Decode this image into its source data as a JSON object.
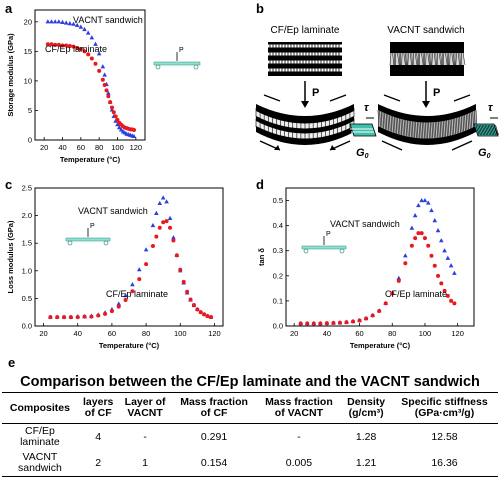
{
  "panels": {
    "a": {
      "letter": "a",
      "chart_data": {
        "type": "scatter",
        "xlabel": "Temperature (°C)",
        "ylabel": "Storage modulus (GPa)",
        "xlim": [
          10,
          130
        ],
        "ylim": [
          0,
          22
        ],
        "xticks": [
          20,
          40,
          60,
          80,
          100,
          120
        ],
        "yticks": [
          0,
          5,
          10,
          15,
          20
        ],
        "series": [
          {
            "name": "VACNT sandwich",
            "color": "#2b3fe0",
            "marker": "triangle",
            "x": [
              24,
              28,
              32,
              36,
              40,
              44,
              48,
              52,
              56,
              60,
              64,
              68,
              72,
              76,
              80,
              84,
              86,
              88,
              90,
              92,
              94,
              96,
              98,
              100,
              102,
              104,
              106,
              108,
              110,
              112,
              114,
              116,
              118
            ],
            "y": [
              20,
              20,
              20,
              20,
              19.9,
              19.8,
              19.7,
              19.6,
              19.4,
              19.1,
              18.7,
              18.1,
              17.3,
              16.2,
              14.6,
              12.4,
              11,
              9.4,
              7.9,
              6.4,
              5.1,
              4,
              3.2,
              2.6,
              2.1,
              1.7,
              1.4,
              1.2,
              1,
              0.9,
              0.8,
              0.7,
              0.6
            ]
          },
          {
            "name": "CF/Ep laminate",
            "color": "#e8191f",
            "marker": "circle",
            "x": [
              24,
              28,
              32,
              36,
              40,
              44,
              48,
              52,
              56,
              60,
              64,
              68,
              72,
              76,
              80,
              84,
              86,
              88,
              90,
              92,
              94,
              96,
              98,
              100,
              102,
              104,
              106,
              108,
              110,
              112,
              114,
              116,
              118
            ],
            "y": [
              16.2,
              16.2,
              16.1,
              16.1,
              16,
              16,
              15.9,
              15.8,
              15.6,
              15.4,
              15,
              14.5,
              13.8,
              12.9,
              11.7,
              10.2,
              9.3,
              8.4,
              7.4,
              6.4,
              5.5,
              4.7,
              4,
              3.4,
              2.9,
              2.6,
              2.3,
              2.1,
              2,
              1.9,
              1.8,
              1.8,
              1.7
            ]
          }
        ],
        "annotations": {
          "load": "P"
        }
      }
    },
    "b": {
      "letter": "b",
      "left_title": "CF/Ep laminate",
      "right_title": "VACNT sandwich",
      "load": "P",
      "tau": "τ",
      "g_label": "G",
      "g_sub": "0"
    },
    "c": {
      "letter": "c",
      "chart_data": {
        "type": "scatter",
        "xlabel": "Temperature (°C)",
        "ylabel": "Loss modulus (GPa)",
        "xlim": [
          15,
          125
        ],
        "ylim": [
          0,
          2.5
        ],
        "xticks": [
          20,
          40,
          60,
          80,
          100,
          120
        ],
        "yticks": [
          0.0,
          0.5,
          1.0,
          1.5,
          2.0,
          2.5
        ],
        "series": [
          {
            "name": "VACNT sandwich",
            "color": "#2b3fe0",
            "marker": "triangle",
            "x": [
              24,
              28,
              32,
              36,
              40,
              44,
              48,
              52,
              56,
              60,
              64,
              68,
              72,
              76,
              80,
              84,
              86,
              88,
              90,
              92,
              94,
              96,
              98,
              100,
              102,
              104,
              106,
              108,
              110,
              112,
              114,
              116,
              118
            ],
            "y": [
              0.16,
              0.16,
              0.16,
              0.16,
              0.17,
              0.17,
              0.18,
              0.2,
              0.24,
              0.3,
              0.4,
              0.55,
              0.75,
              1.02,
              1.38,
              1.82,
              2.04,
              2.22,
              2.32,
              2.25,
              1.95,
              1.6,
              1.28,
              1.0,
              0.78,
              0.6,
              0.47,
              0.37,
              0.3,
              0.25,
              0.21,
              0.18,
              0.16
            ]
          },
          {
            "name": "CF/Ep laminate",
            "color": "#e8191f",
            "marker": "circle",
            "x": [
              24,
              28,
              32,
              36,
              40,
              44,
              48,
              52,
              56,
              60,
              64,
              68,
              72,
              76,
              80,
              84,
              86,
              88,
              90,
              92,
              94,
              96,
              98,
              100,
              102,
              104,
              106,
              108,
              110,
              112,
              114,
              116,
              118
            ],
            "y": [
              0.16,
              0.16,
              0.16,
              0.16,
              0.16,
              0.17,
              0.17,
              0.19,
              0.22,
              0.27,
              0.35,
              0.47,
              0.63,
              0.85,
              1.12,
              1.45,
              1.62,
              1.78,
              1.88,
              1.9,
              1.78,
              1.55,
              1.28,
              1.02,
              0.8,
              0.62,
              0.48,
              0.38,
              0.3,
              0.25,
              0.21,
              0.18,
              0.16
            ]
          }
        ],
        "annotations": {
          "load": "P"
        }
      }
    },
    "d": {
      "letter": "d",
      "chart_data": {
        "type": "scatter",
        "xlabel": "Temperature (°C)",
        "ylabel": "tan δ",
        "xlim": [
          15,
          130
        ],
        "ylim": [
          0,
          0.55
        ],
        "xticks": [
          20,
          40,
          60,
          80,
          100,
          120
        ],
        "yticks": [
          0.0,
          0.1,
          0.2,
          0.3,
          0.4,
          0.5
        ],
        "series": [
          {
            "name": "VACNT sandwich",
            "color": "#2b3fe0",
            "marker": "triangle",
            "x": [
              24,
              28,
              32,
              36,
              40,
              44,
              48,
              52,
              56,
              60,
              64,
              68,
              72,
              76,
              80,
              84,
              88,
              92,
              94,
              96,
              98,
              100,
              102,
              104,
              106,
              108,
              110,
              112,
              114,
              116,
              118
            ],
            "y": [
              0.01,
              0.01,
              0.01,
              0.01,
              0.011,
              0.012,
              0.013,
              0.015,
              0.018,
              0.022,
              0.03,
              0.042,
              0.06,
              0.09,
              0.13,
              0.19,
              0.28,
              0.39,
              0.44,
              0.48,
              0.5,
              0.5,
              0.49,
              0.46,
              0.42,
              0.38,
              0.34,
              0.3,
              0.27,
              0.24,
              0.21
            ]
          },
          {
            "name": "CF/Ep laminate",
            "color": "#e8191f",
            "marker": "circle",
            "x": [
              24,
              28,
              32,
              36,
              40,
              44,
              48,
              52,
              56,
              60,
              64,
              68,
              72,
              76,
              80,
              84,
              88,
              92,
              94,
              96,
              98,
              100,
              102,
              104,
              106,
              108,
              110,
              112,
              114,
              116,
              118
            ],
            "y": [
              0.01,
              0.01,
              0.01,
              0.01,
              0.011,
              0.012,
              0.013,
              0.015,
              0.018,
              0.022,
              0.03,
              0.042,
              0.06,
              0.09,
              0.13,
              0.18,
              0.25,
              0.32,
              0.35,
              0.37,
              0.37,
              0.35,
              0.32,
              0.28,
              0.24,
              0.2,
              0.17,
              0.14,
              0.12,
              0.1,
              0.09
            ]
          }
        ],
        "annotations": {
          "load": "P"
        }
      }
    }
  },
  "table": {
    "letter": "e",
    "title": "Comparison between the CF/Ep laminate and the VACNT sandwich",
    "headers": [
      "Composites",
      "layers of CF",
      "Layer of VACNT",
      "Mass fraction of CF",
      "Mass fraction of VACNT",
      "Density (g/cm³)",
      "Specific stiffness (GPa·cm³/g)"
    ],
    "headers_lines": [
      [
        "Composites"
      ],
      [
        "layers",
        "of CF"
      ],
      [
        "Layer of",
        "VACNT"
      ],
      [
        "Mass fraction",
        "of CF"
      ],
      [
        "Mass fraction",
        "of VACNT"
      ],
      [
        "Density",
        "(g/cm³)"
      ],
      [
        "Specific stiffness",
        "(GPa·cm³/g)"
      ]
    ],
    "rows": [
      {
        "name_lines": [
          "CF/Ep",
          "laminate"
        ],
        "cells": [
          "4",
          "-",
          "0.291",
          "-",
          "1.28",
          "12.58"
        ]
      },
      {
        "name_lines": [
          "VACNT",
          "sandwich"
        ],
        "cells": [
          "2",
          "1",
          "0.154",
          "0.005",
          "1.21",
          "16.36"
        ]
      }
    ]
  }
}
